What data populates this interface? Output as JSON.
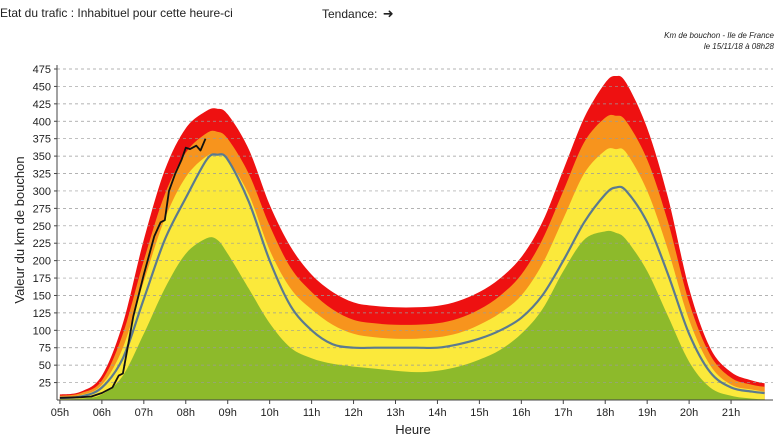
{
  "header": {
    "status_label": "Etat du trafic :",
    "status_value": "Inhabituel pour cette heure-ci",
    "trend_label": "Tendance:",
    "trend_icon": "arrow-right-icon"
  },
  "caption": {
    "line1": "Km de bouchon - Ile de France",
    "line2": "le 15/11/18 à 08h28"
  },
  "colors": {
    "red": "#ee1111",
    "orange": "#f7941d",
    "yellow": "#fbe93b",
    "green": "#8dba2b",
    "median_line": "#5b7a8f",
    "today_line": "#111111"
  },
  "chart_data": {
    "type": "area",
    "title": "Km de bouchon - Ile de France",
    "xlabel": "Heure",
    "ylabel": "Valeur du  km de bouchon",
    "xlim": [
      4.93,
      22.0
    ],
    "ylim": [
      0,
      475
    ],
    "yticks": [
      25,
      50,
      75,
      100,
      125,
      150,
      175,
      200,
      225,
      250,
      275,
      300,
      325,
      350,
      375,
      400,
      425,
      450,
      475
    ],
    "xtick_labels": [
      "05h",
      "06h",
      "07h",
      "08h",
      "09h",
      "10h",
      "11h",
      "12h",
      "13h",
      "14h",
      "15h",
      "16h",
      "17h",
      "18h",
      "19h",
      "20h",
      "21h"
    ],
    "grid": true,
    "x": [
      5.0,
      5.5,
      6.0,
      6.5,
      7.0,
      7.5,
      8.0,
      8.5,
      8.75,
      9.0,
      9.5,
      10.0,
      10.5,
      11.0,
      11.5,
      12.0,
      12.5,
      13.0,
      13.5,
      14.0,
      14.5,
      15.0,
      15.5,
      16.0,
      16.5,
      17.0,
      17.5,
      18.0,
      18.25,
      18.5,
      19.0,
      19.5,
      20.0,
      20.5,
      21.0,
      21.5,
      21.8
    ],
    "series": [
      {
        "name": "max",
        "color": "red",
        "values": [
          8,
          12,
          35,
          110,
          230,
          330,
          390,
          415,
          418,
          410,
          360,
          280,
          220,
          180,
          155,
          140,
          135,
          133,
          133,
          135,
          142,
          155,
          175,
          205,
          255,
          330,
          405,
          455,
          465,
          455,
          390,
          290,
          160,
          75,
          40,
          28,
          24
        ]
      },
      {
        "name": "high",
        "color": "orange",
        "values": [
          6,
          10,
          28,
          95,
          200,
          295,
          355,
          383,
          385,
          375,
          325,
          250,
          190,
          155,
          130,
          115,
          110,
          108,
          108,
          110,
          117,
          130,
          150,
          180,
          230,
          300,
          370,
          405,
          408,
          400,
          345,
          255,
          140,
          65,
          32,
          22,
          19
        ]
      },
      {
        "name": "mid",
        "color": "yellow",
        "values": [
          4,
          7,
          22,
          75,
          170,
          260,
          320,
          350,
          352,
          345,
          295,
          215,
          160,
          130,
          108,
          95,
          90,
          88,
          88,
          90,
          96,
          108,
          125,
          150,
          195,
          260,
          325,
          358,
          360,
          355,
          300,
          215,
          115,
          50,
          22,
          15,
          12
        ]
      },
      {
        "name": "low",
        "color": "green",
        "values": [
          1,
          2,
          8,
          35,
          95,
          160,
          210,
          232,
          230,
          210,
          160,
          110,
          75,
          60,
          52,
          48,
          45,
          42,
          40,
          42,
          48,
          58,
          72,
          95,
          130,
          185,
          230,
          242,
          240,
          230,
          185,
          120,
          55,
          18,
          6,
          2,
          1
        ]
      },
      {
        "name": "median",
        "color": "median_line",
        "values": [
          3,
          5,
          18,
          60,
          145,
          230,
          290,
          345,
          352,
          345,
          285,
          200,
          135,
          100,
          80,
          75,
          75,
          75,
          75,
          75,
          80,
          88,
          100,
          118,
          150,
          200,
          255,
          295,
          305,
          300,
          255,
          180,
          95,
          40,
          18,
          12,
          10
        ]
      }
    ],
    "today": {
      "name": "today",
      "x": [
        5.0,
        5.5,
        5.75,
        6.0,
        6.25,
        6.4,
        6.5,
        6.6,
        6.75,
        7.0,
        7.25,
        7.4,
        7.5,
        7.6,
        7.75,
        7.9,
        8.0,
        8.1,
        8.25,
        8.35,
        8.47
      ],
      "values": [
        3,
        4,
        5,
        10,
        18,
        35,
        38,
        70,
        120,
        180,
        235,
        255,
        258,
        300,
        325,
        345,
        362,
        360,
        365,
        358,
        375
      ]
    }
  }
}
